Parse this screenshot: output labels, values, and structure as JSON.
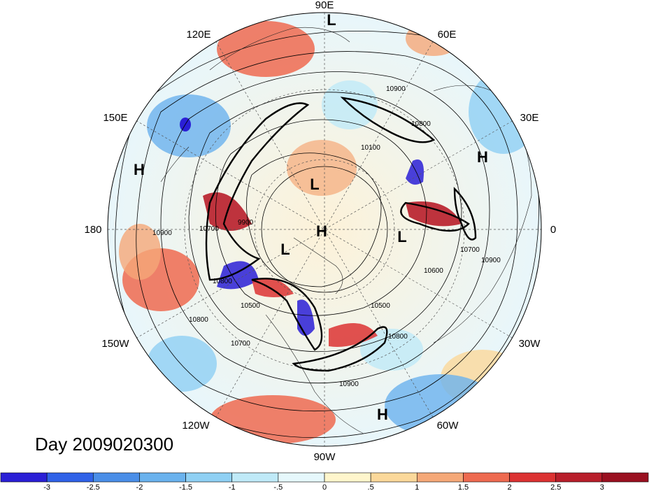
{
  "title": "Day 2009020300",
  "longitude_labels": [
    "90E",
    "60E",
    "30E",
    "0",
    "30W",
    "60W",
    "90W",
    "120W",
    "150W",
    "180",
    "150E",
    "120E"
  ],
  "pressure_centers": [
    {
      "type": "L"
    },
    {
      "type": "L"
    },
    {
      "type": "H"
    },
    {
      "type": "L"
    },
    {
      "type": "L"
    },
    {
      "type": "H"
    },
    {
      "type": "H"
    },
    {
      "type": "H"
    }
  ],
  "contour_labels": [
    "10900",
    "10800",
    "10100",
    "10900",
    "10700",
    "9900",
    "10800",
    "10500",
    "10700",
    "10800",
    "10500",
    "10600",
    "10700",
    "10900",
    "10800",
    "10900"
  ],
  "colorbar": {
    "tick_labels": [
      "-3",
      "-2.5",
      "-2",
      "-1.5",
      "-1",
      "-.5",
      "0",
      ".5",
      "1",
      "1.5",
      "2",
      "2.5",
      "3"
    ],
    "colors": [
      "#2a1fd6",
      "#2f62e8",
      "#4a8ee8",
      "#6ab2ee",
      "#8fd0f4",
      "#bfeaf8",
      "#e6f8fc",
      "#fff6cc",
      "#fbd89a",
      "#f5a878",
      "#ee6a50",
      "#dc3232",
      "#b81e2a",
      "#9a1020"
    ]
  }
}
